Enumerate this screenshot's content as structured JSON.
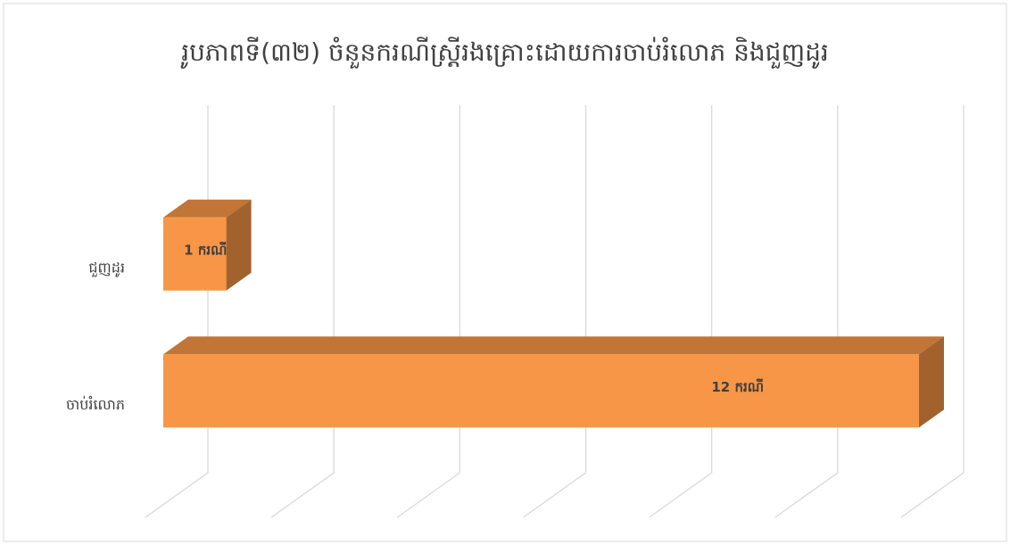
{
  "chart_data": {
    "type": "bar3d_horizontal",
    "title": "រូបភាពទី(៣២) ចំនួនករណីស្ត្រីរងគ្រោះដោយការចាប់រំលោភ និងជួញដូរ",
    "categories": [
      "ជួញដូរ",
      "ចាប់រំលោភ"
    ],
    "values": [
      1,
      12
    ],
    "value_labels": [
      "1 ករណី",
      "12 ករណី"
    ],
    "color": "#f79646",
    "xlim": [
      0,
      12
    ],
    "xticks": [
      0,
      2,
      4,
      6,
      8,
      10,
      12
    ],
    "grid": true
  }
}
